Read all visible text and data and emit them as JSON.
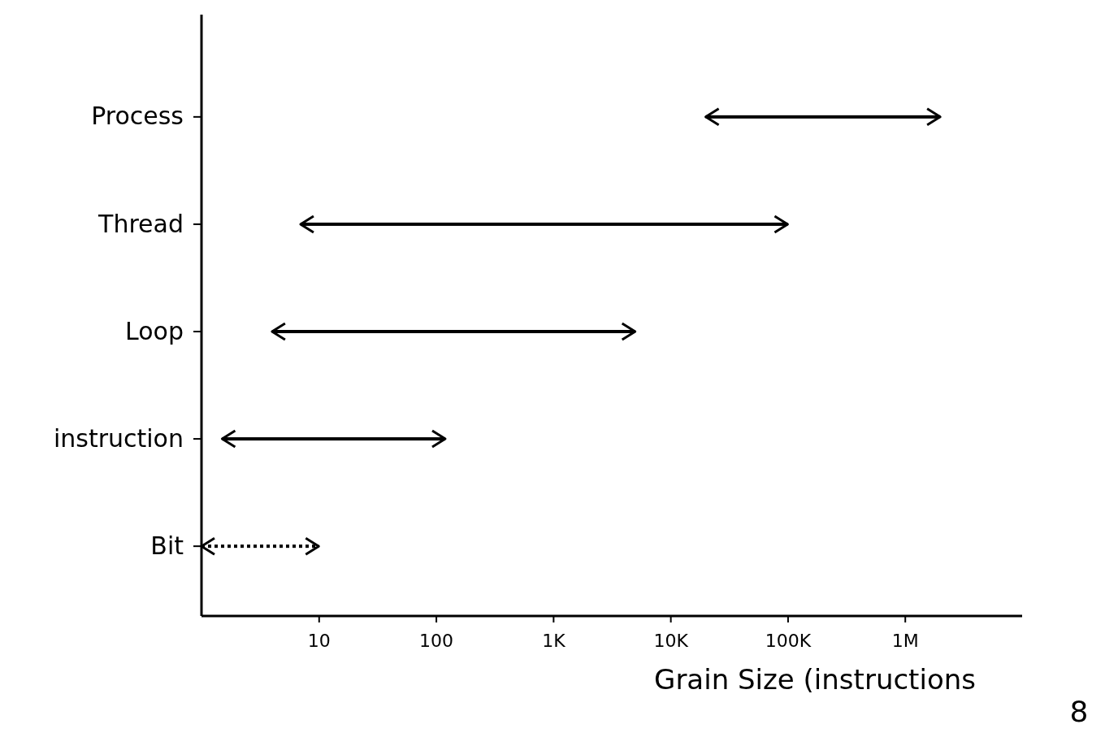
{
  "chart_data": {
    "type": "bar",
    "orientation": "horizontal",
    "categories": [
      "Process",
      "Thread",
      "Loop",
      "instruction",
      "Bit"
    ],
    "series": [
      {
        "color": "#000000",
        "line_style": "solid",
        "base": [
          20000,
          7,
          4,
          1.5,
          null
        ],
        "values": [
          1980000,
          99993,
          4996,
          118.5,
          null
        ]
      },
      {
        "color": "#000000",
        "line_style": "dotted",
        "base": [
          null,
          null,
          null,
          null,
          1
        ],
        "values": [
          null,
          null,
          null,
          null,
          9
        ]
      }
    ],
    "log": "x",
    "xlim": [
      1,
      10000000
    ],
    "xticks": [
      10,
      100,
      {
        "value": 1000,
        "label": "1K"
      },
      {
        "value": 10000,
        "label": "10K"
      },
      {
        "value": 100000,
        "label": "100K"
      },
      {
        "value": 1000000,
        "label": "1M"
      }
    ],
    "xlabel": "Grain Size (instructions",
    "grid": false,
    "annotations": [
      "8"
    ]
  }
}
